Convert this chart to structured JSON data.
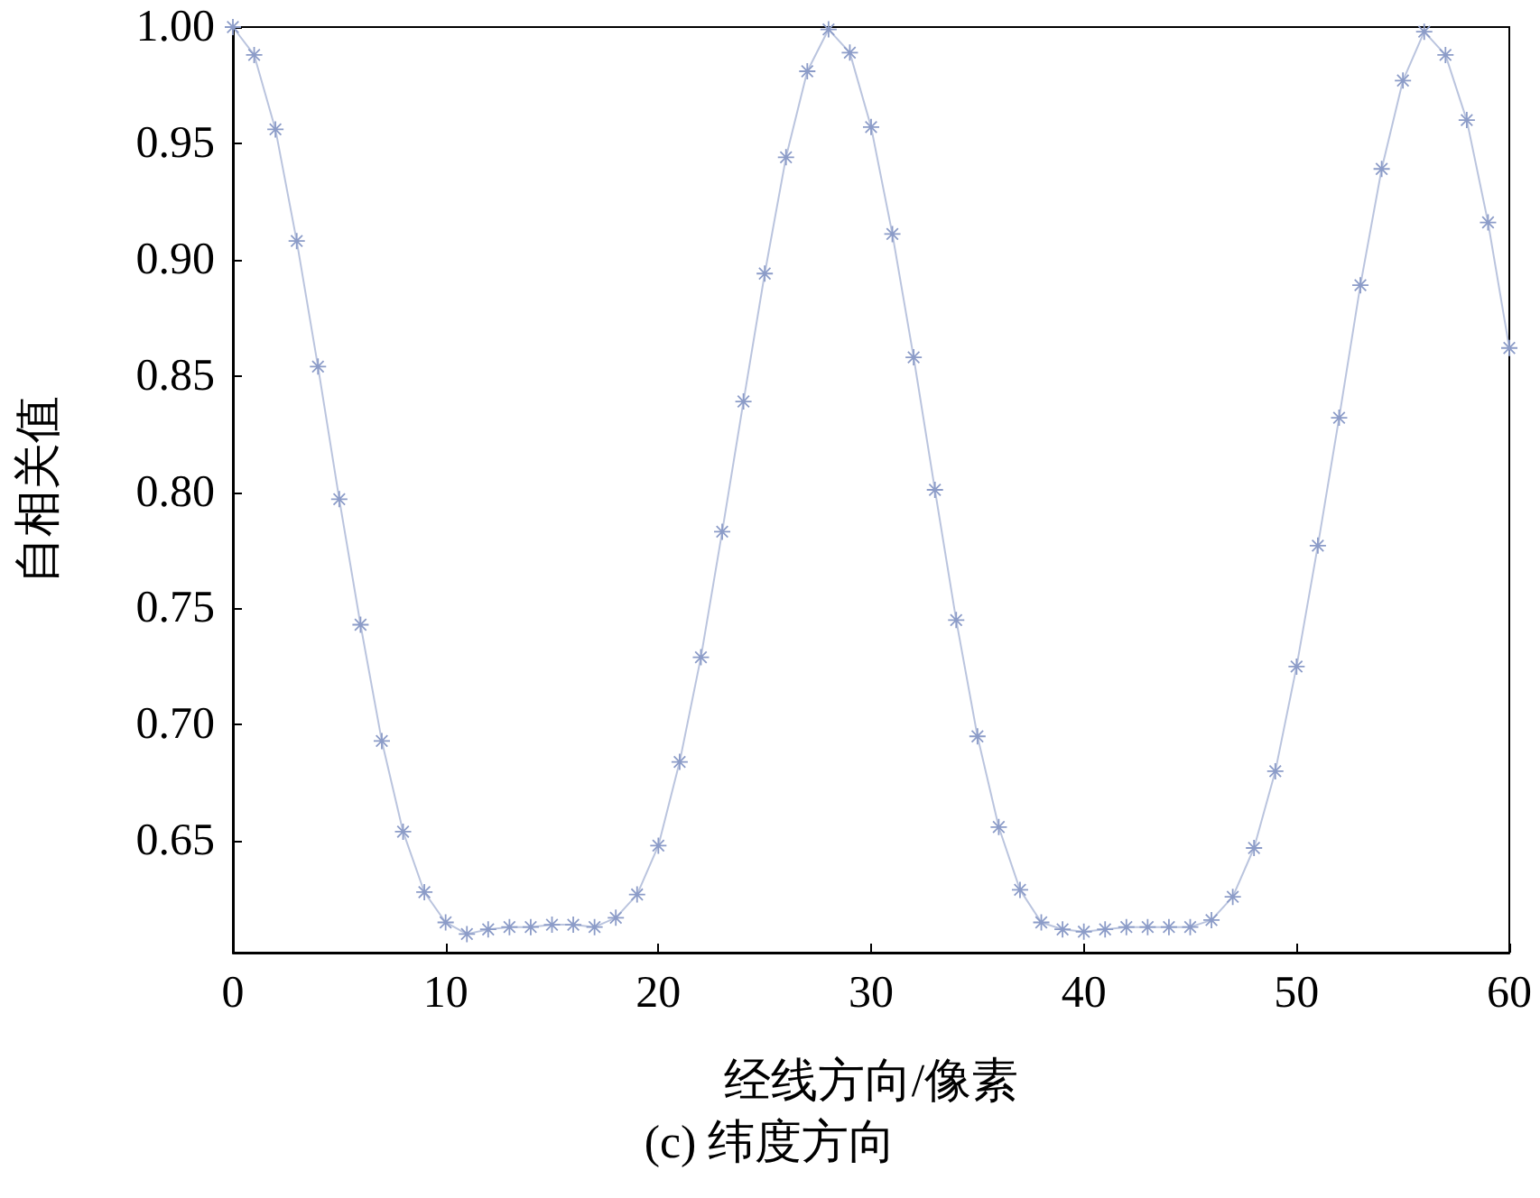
{
  "chart_data": {
    "type": "line",
    "xlabel": "经线方向/像素",
    "ylabel": "自相关值",
    "annotations": [
      "(c) 纬度方向"
    ],
    "x": [
      0,
      1,
      2,
      3,
      4,
      5,
      6,
      7,
      8,
      9,
      10,
      11,
      12,
      13,
      14,
      15,
      16,
      17,
      18,
      19,
      20,
      21,
      22,
      23,
      24,
      25,
      26,
      27,
      28,
      29,
      30,
      31,
      32,
      33,
      34,
      35,
      36,
      37,
      38,
      39,
      40,
      41,
      42,
      43,
      44,
      45,
      46,
      47,
      48,
      49,
      50,
      51,
      52,
      53,
      54,
      55,
      56,
      57,
      58,
      59,
      60
    ],
    "series": [
      {
        "color": "#8c9cc8",
        "values": [
          1.0,
          0.988,
          0.956,
          0.908,
          0.854,
          0.797,
          0.743,
          0.693,
          0.654,
          0.628,
          0.615,
          0.61,
          0.612,
          0.613,
          0.613,
          0.614,
          0.614,
          0.613,
          0.617,
          0.627,
          0.648,
          0.684,
          0.729,
          0.783,
          0.839,
          0.894,
          0.944,
          0.981,
          0.999,
          0.989,
          0.957,
          0.911,
          0.858,
          0.801,
          0.745,
          0.695,
          0.656,
          0.629,
          0.615,
          0.612,
          0.611,
          0.612,
          0.613,
          0.613,
          0.613,
          0.613,
          0.616,
          0.626,
          0.647,
          0.68,
          0.725,
          0.777,
          0.832,
          0.889,
          0.939,
          0.977,
          0.998,
          0.988,
          0.96,
          0.916,
          0.862
        ]
      }
    ],
    "xlim": [
      0,
      60
    ],
    "xticks": [
      0,
      10,
      20,
      30,
      40,
      50,
      60
    ],
    "ylim": [
      0.602,
      1.0
    ],
    "yticks": [
      0.65,
      {
        "value": 0.7,
        "label": "0.70"
      },
      0.75,
      {
        "value": 0.8,
        "label": "0.80"
      },
      0.85,
      {
        "value": 0.9,
        "label": "0.90"
      },
      0.95,
      {
        "value": 1.0,
        "label": "1.00"
      }
    ],
    "grid": false,
    "marker": "star",
    "line_style": "solid"
  }
}
